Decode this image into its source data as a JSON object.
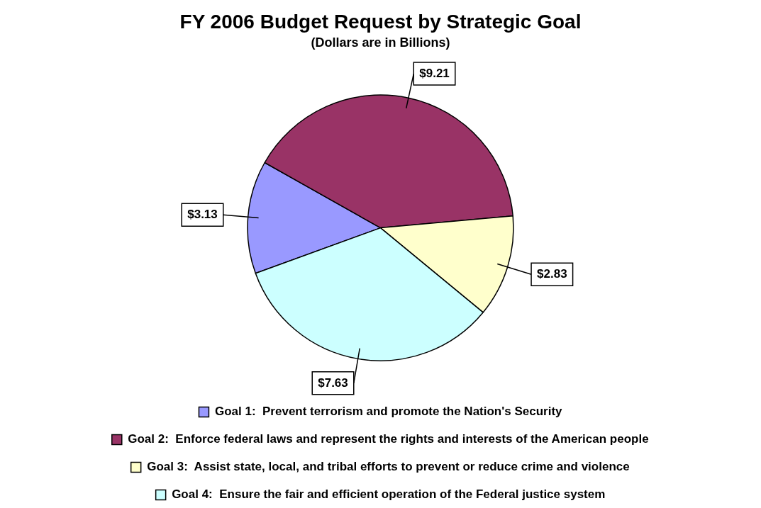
{
  "chart_data": {
    "type": "pie",
    "title": "FY 2006 Budget Request by Strategic Goal",
    "subtitle": "(Dollars are in Billions)",
    "categories": [
      "Goal 1:  Prevent terrorism and promote the Nation's Security",
      "Goal 2:  Enforce federal laws and represent the rights and interests of the American people",
      "Goal 3:  Assist state, local, and tribal efforts to prevent or reduce crime and violence",
      "Goal 4:  Ensure the fair and efficient operation of the Federal justice system"
    ],
    "values": [
      3.13,
      9.21,
      2.83,
      7.63
    ],
    "value_labels": [
      "$3.13",
      "$9.21",
      "$2.83",
      "$7.63"
    ],
    "colors": [
      "#9999ff",
      "#993366",
      "#ffffcc",
      "#ccffff"
    ],
    "legend": "bottom"
  }
}
